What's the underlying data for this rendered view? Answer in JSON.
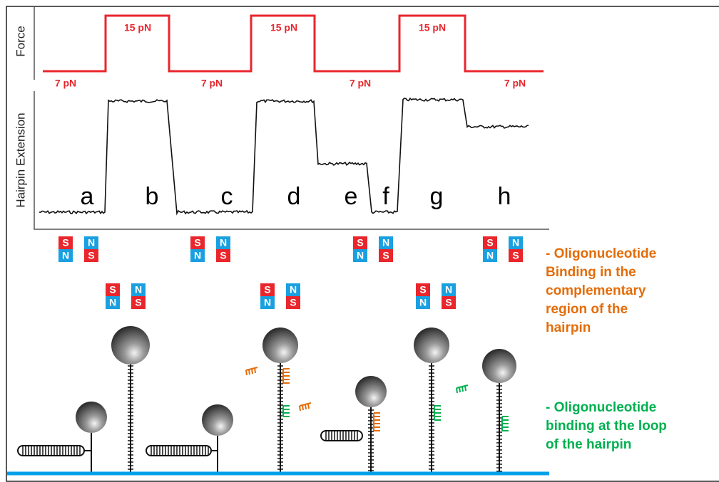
{
  "force_panel": {
    "axis_label": "Force",
    "high_labels": [
      "15 pN",
      "15 pN",
      "15 pN"
    ],
    "low_labels": [
      "7 pN",
      "7 pN",
      "7 pN",
      "7 pN"
    ]
  },
  "extension_panel": {
    "axis_label": "Hairpin Extension",
    "state_labels": [
      "a",
      "b",
      "c",
      "d",
      "e",
      "f",
      "g",
      "h"
    ]
  },
  "magnets": [
    {
      "cells": [
        "S",
        "N",
        "N",
        "S"
      ]
    },
    {
      "cells": [
        "S",
        "N",
        "N",
        "S"
      ]
    },
    {
      "cells": [
        "S",
        "N",
        "N",
        "S"
      ]
    },
    {
      "cells": [
        "S",
        "N",
        "N",
        "S"
      ]
    },
    {
      "cells": [
        "S",
        "N",
        "N",
        "S"
      ]
    },
    {
      "cells": [
        "S",
        "N",
        "N",
        "S"
      ]
    },
    {
      "cells": [
        "S",
        "N",
        "N",
        "S"
      ]
    }
  ],
  "legend": [
    {
      "lines": [
        "- Oligonucleotide",
        "Binding in the",
        "complementary",
        "region of the",
        "hairpin"
      ]
    },
    {
      "lines": [
        "- Oligonucleotide",
        "binding at the loop",
        "of the hairpin"
      ]
    }
  ]
}
